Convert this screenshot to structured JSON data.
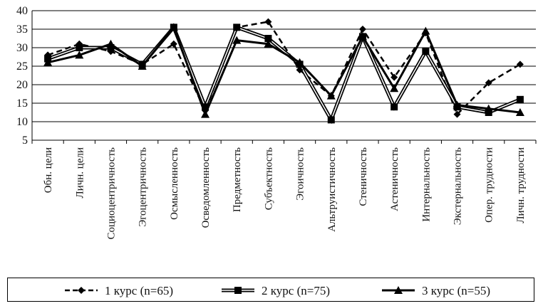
{
  "chart_data": {
    "type": "line",
    "title": "",
    "xlabel": "",
    "ylabel": "",
    "ylim": [
      5,
      40
    ],
    "yticks": [
      "5",
      "10",
      "15",
      "20",
      "25",
      "30",
      "35",
      "40"
    ],
    "grid": "horizontal",
    "legend_position": "bottom",
    "categories": [
      "Обн. цели",
      "Личн. цели",
      "Социоцентричность",
      "Эгоцентричность",
      "Осмысленность",
      "Осведомленность",
      "Предметность",
      "Субъектность",
      "Эгоичность",
      "Альтруистичность",
      "Стеничность",
      "Астеничность",
      "Интернальность",
      "Экстернальность",
      "Опер. трудности",
      "Личн. трудности"
    ],
    "series": [
      {
        "name": "1 курс (n=65)",
        "style": "dashed",
        "marker": "diamond",
        "color": "#000000",
        "values": [
          28,
          31,
          29,
          25.5,
          31,
          13,
          35.5,
          37,
          24,
          17,
          35,
          22,
          34,
          12,
          20.5,
          25.5
        ]
      },
      {
        "name": "2 курс (n=75)",
        "style": "double",
        "marker": "square",
        "color": "#000000",
        "values": [
          27,
          30,
          30,
          25.5,
          35.5,
          14,
          35.5,
          32.5,
          25.5,
          10.5,
          33,
          14,
          29,
          14,
          12.5,
          16
        ]
      },
      {
        "name": "3 курс (n=55)",
        "style": "solid",
        "marker": "triangle",
        "color": "#000000",
        "values": [
          26,
          28,
          31,
          25,
          35.5,
          12,
          32,
          31,
          26,
          17,
          33,
          19,
          34.5,
          14.5,
          13.5,
          12.5
        ]
      }
    ]
  }
}
